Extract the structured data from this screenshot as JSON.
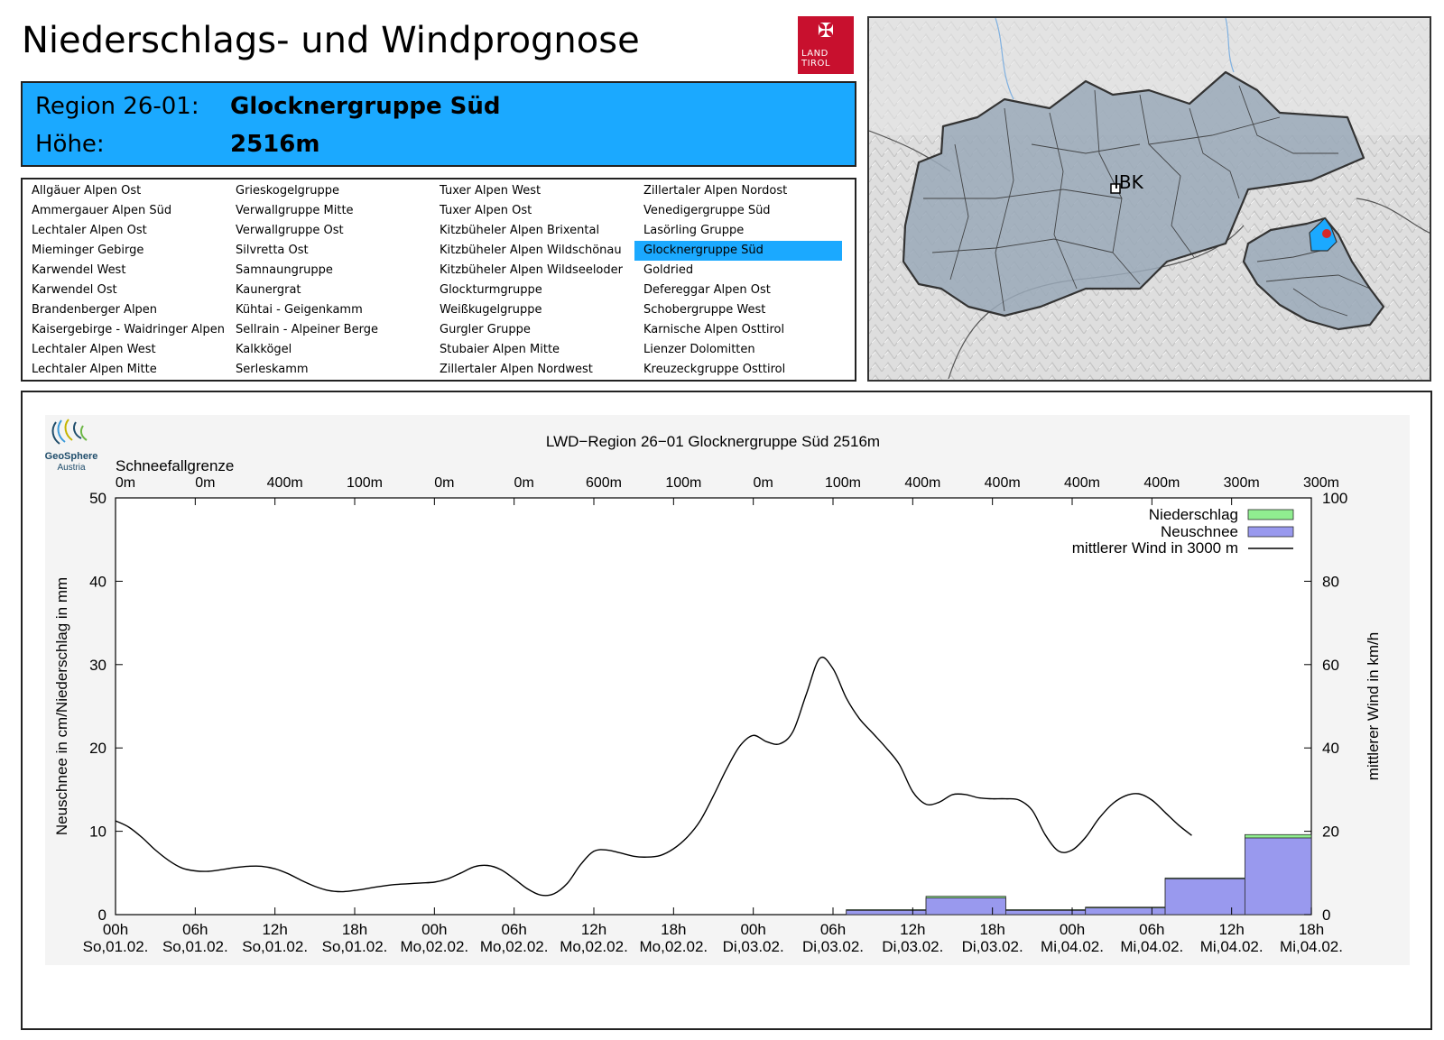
{
  "page_title": "Niederschlags- und Windprognose",
  "logo": {
    "line1": "LAND",
    "line2": "TIROL",
    "color": "#c8102e"
  },
  "region": {
    "label_region": "Region 26-01:",
    "name": "Glocknergruppe Süd",
    "label_height": "Höhe:",
    "height": "2516m",
    "highlight_color": "#1ba9ff"
  },
  "regions_list": [
    [
      "Allgäuer Alpen Ost",
      "Ammergauer Alpen Süd",
      "Lechtaler Alpen Ost",
      "Mieminger Gebirge",
      "Karwendel West",
      "Karwendel Ost",
      "Brandenberger Alpen",
      "Kaisergebirge - Waidringer Alpen",
      "Lechtaler Alpen West",
      "Lechtaler Alpen Mitte"
    ],
    [
      "Grieskogelgruppe",
      "Verwallgruppe Mitte",
      "Verwallgruppe Ost",
      "Silvretta Ost",
      "Samnaungruppe",
      "Kaunergrat",
      "Kühtai - Geigenkamm",
      "Sellrain - Alpeiner Berge",
      "Kalkkögel",
      "Serleskamm"
    ],
    [
      "Tuxer Alpen West",
      "Tuxer Alpen Ost",
      "Kitzbüheler Alpen Brixental",
      "Kitzbüheler Alpen Wildschönau",
      "Kitzbüheler Alpen Wildseeloder",
      "Glockturmgruppe",
      "Weißkugelgruppe",
      "Gurgler Gruppe",
      "Stubaier Alpen Mitte",
      "Zillertaler Alpen Nordwest"
    ],
    [
      "Zillertaler Alpen Nordost",
      "Venedigergruppe Süd",
      "Lasörling Gruppe",
      "Glocknergruppe Süd",
      "Goldried",
      "Defereggar Alpen Ost",
      "Schobergruppe West",
      "Karnische Alpen Osttirol",
      "Lienzer Dolomitten",
      "Kreuzeckgruppe Osttirol"
    ]
  ],
  "selected_region": "Glocknergruppe Süd",
  "map": {
    "city_label": "IBK"
  },
  "geosphere": {
    "name": "GeoSphere",
    "country": "Austria"
  },
  "chart_data": {
    "type": "bar",
    "title": "LWD−Region 26−01 Glocknergruppe Süd 2516m",
    "ylabel": "Neuschnee in cm/Niederschlag in mm",
    "y2label": "mittlerer Wind in km/h",
    "ylim": [
      0,
      50
    ],
    "y2lim": [
      0,
      100
    ],
    "yticks": [
      0,
      10,
      20,
      30,
      40,
      50
    ],
    "y2ticks": [
      0,
      20,
      40,
      60,
      80,
      100
    ],
    "grid": false,
    "legend_position": "top-right",
    "snowline_label": "Schneefallgrenze",
    "snowline": [
      "0m",
      "0m",
      "400m",
      "100m",
      "0m",
      "0m",
      "600m",
      "100m",
      "0m",
      "100m",
      "400m",
      "400m",
      "400m",
      "400m",
      "300m",
      "300m"
    ],
    "x_hours": [
      0,
      6,
      12,
      18,
      24,
      30,
      36,
      42,
      48,
      54,
      60,
      66,
      72,
      78,
      84,
      90
    ],
    "x_ticks": [
      {
        "time": "00h",
        "day": "So,01.02."
      },
      {
        "time": "06h",
        "day": "So,01.02."
      },
      {
        "time": "12h",
        "day": "So,01.02."
      },
      {
        "time": "18h",
        "day": "So,01.02."
      },
      {
        "time": "00h",
        "day": "Mo,02.02."
      },
      {
        "time": "06h",
        "day": "Mo,02.02."
      },
      {
        "time": "12h",
        "day": "Mo,02.02."
      },
      {
        "time": "18h",
        "day": "Mo,02.02."
      },
      {
        "time": "00h",
        "day": "Di,03.02."
      },
      {
        "time": "06h",
        "day": "Di,03.02."
      },
      {
        "time": "12h",
        "day": "Di,03.02."
      },
      {
        "time": "18h",
        "day": "Di,03.02."
      },
      {
        "time": "00h",
        "day": "Mi,04.02."
      },
      {
        "time": "06h",
        "day": "Mi,04.02."
      },
      {
        "time": "12h",
        "day": "Mi,04.02."
      },
      {
        "time": "18h",
        "day": "Mi,04.02."
      }
    ],
    "series": [
      {
        "name": "Niederschlag",
        "color": "#90ee90",
        "bars": [
          {
            "start": 55,
            "end": 61,
            "value": 0.6
          },
          {
            "start": 61,
            "end": 67,
            "value": 2.2
          },
          {
            "start": 67,
            "end": 73,
            "value": 0.6
          },
          {
            "start": 73,
            "end": 79,
            "value": 0.9
          },
          {
            "start": 79,
            "end": 85,
            "value": 4.4
          },
          {
            "start": 85,
            "end": 90,
            "value": 9.6
          }
        ]
      },
      {
        "name": "Neuschnee",
        "color": "#9999ee",
        "bars": [
          {
            "start": 55,
            "end": 61,
            "value": 0.5
          },
          {
            "start": 61,
            "end": 67,
            "value": 2.0
          },
          {
            "start": 67,
            "end": 73,
            "value": 0.5
          },
          {
            "start": 73,
            "end": 79,
            "value": 0.8
          },
          {
            "start": 79,
            "end": 85,
            "value": 4.3
          },
          {
            "start": 85,
            "end": 90,
            "value": 9.2
          }
        ]
      },
      {
        "name": "mittlerer Wind in 3000 m",
        "color": "#000000",
        "axis": "right",
        "points": [
          [
            0,
            22.5
          ],
          [
            1,
            21
          ],
          [
            2,
            18.5
          ],
          [
            3,
            15.5
          ],
          [
            4,
            13
          ],
          [
            5,
            11.2
          ],
          [
            6,
            10.5
          ],
          [
            7,
            10.4
          ],
          [
            8,
            10.8
          ],
          [
            9,
            11.3
          ],
          [
            10,
            11.6
          ],
          [
            11,
            11.6
          ],
          [
            12,
            11
          ],
          [
            13,
            9.8
          ],
          [
            14,
            8.2
          ],
          [
            15,
            6.8
          ],
          [
            16,
            5.8
          ],
          [
            17,
            5.5
          ],
          [
            18,
            5.8
          ],
          [
            19,
            6.3
          ],
          [
            20,
            6.8
          ],
          [
            21,
            7.2
          ],
          [
            22,
            7.4
          ],
          [
            23,
            7.6
          ],
          [
            24,
            7.8
          ],
          [
            25,
            8.6
          ],
          [
            26,
            10
          ],
          [
            27,
            11.5
          ],
          [
            28,
            11.8
          ],
          [
            29,
            10.8
          ],
          [
            30,
            8.6
          ],
          [
            31,
            6.2
          ],
          [
            32,
            4.7
          ],
          [
            33,
            5
          ],
          [
            34,
            7.5
          ],
          [
            35,
            12
          ],
          [
            36,
            15.2
          ],
          [
            37,
            15.5
          ],
          [
            38,
            14.8
          ],
          [
            39,
            14
          ],
          [
            40,
            13.8
          ],
          [
            41,
            14.2
          ],
          [
            42,
            15.8
          ],
          [
            43,
            18.5
          ],
          [
            44,
            22.5
          ],
          [
            45,
            28.5
          ],
          [
            46,
            35
          ],
          [
            47,
            40.5
          ],
          [
            48,
            43
          ],
          [
            49,
            41.5
          ],
          [
            50,
            41
          ],
          [
            51,
            44
          ],
          [
            52,
            53
          ],
          [
            53,
            61.5
          ],
          [
            54,
            59
          ],
          [
            55,
            52
          ],
          [
            56,
            47
          ],
          [
            57,
            43.5
          ],
          [
            58,
            40
          ],
          [
            59,
            36
          ],
          [
            60,
            29.5
          ],
          [
            61,
            26.5
          ],
          [
            62,
            27
          ],
          [
            63,
            28.8
          ],
          [
            64,
            28.8
          ],
          [
            65,
            28
          ],
          [
            66,
            27.8
          ],
          [
            67,
            27.8
          ],
          [
            68,
            27.5
          ],
          [
            69,
            25
          ],
          [
            70,
            19
          ],
          [
            71,
            15.2
          ],
          [
            72,
            15.5
          ],
          [
            73,
            18.5
          ],
          [
            74,
            23
          ],
          [
            75,
            26.5
          ],
          [
            76,
            28.5
          ],
          [
            77,
            29
          ],
          [
            78,
            27.5
          ],
          [
            79,
            24.5
          ],
          [
            80,
            21.5
          ],
          [
            81,
            19
          ]
        ]
      }
    ]
  }
}
